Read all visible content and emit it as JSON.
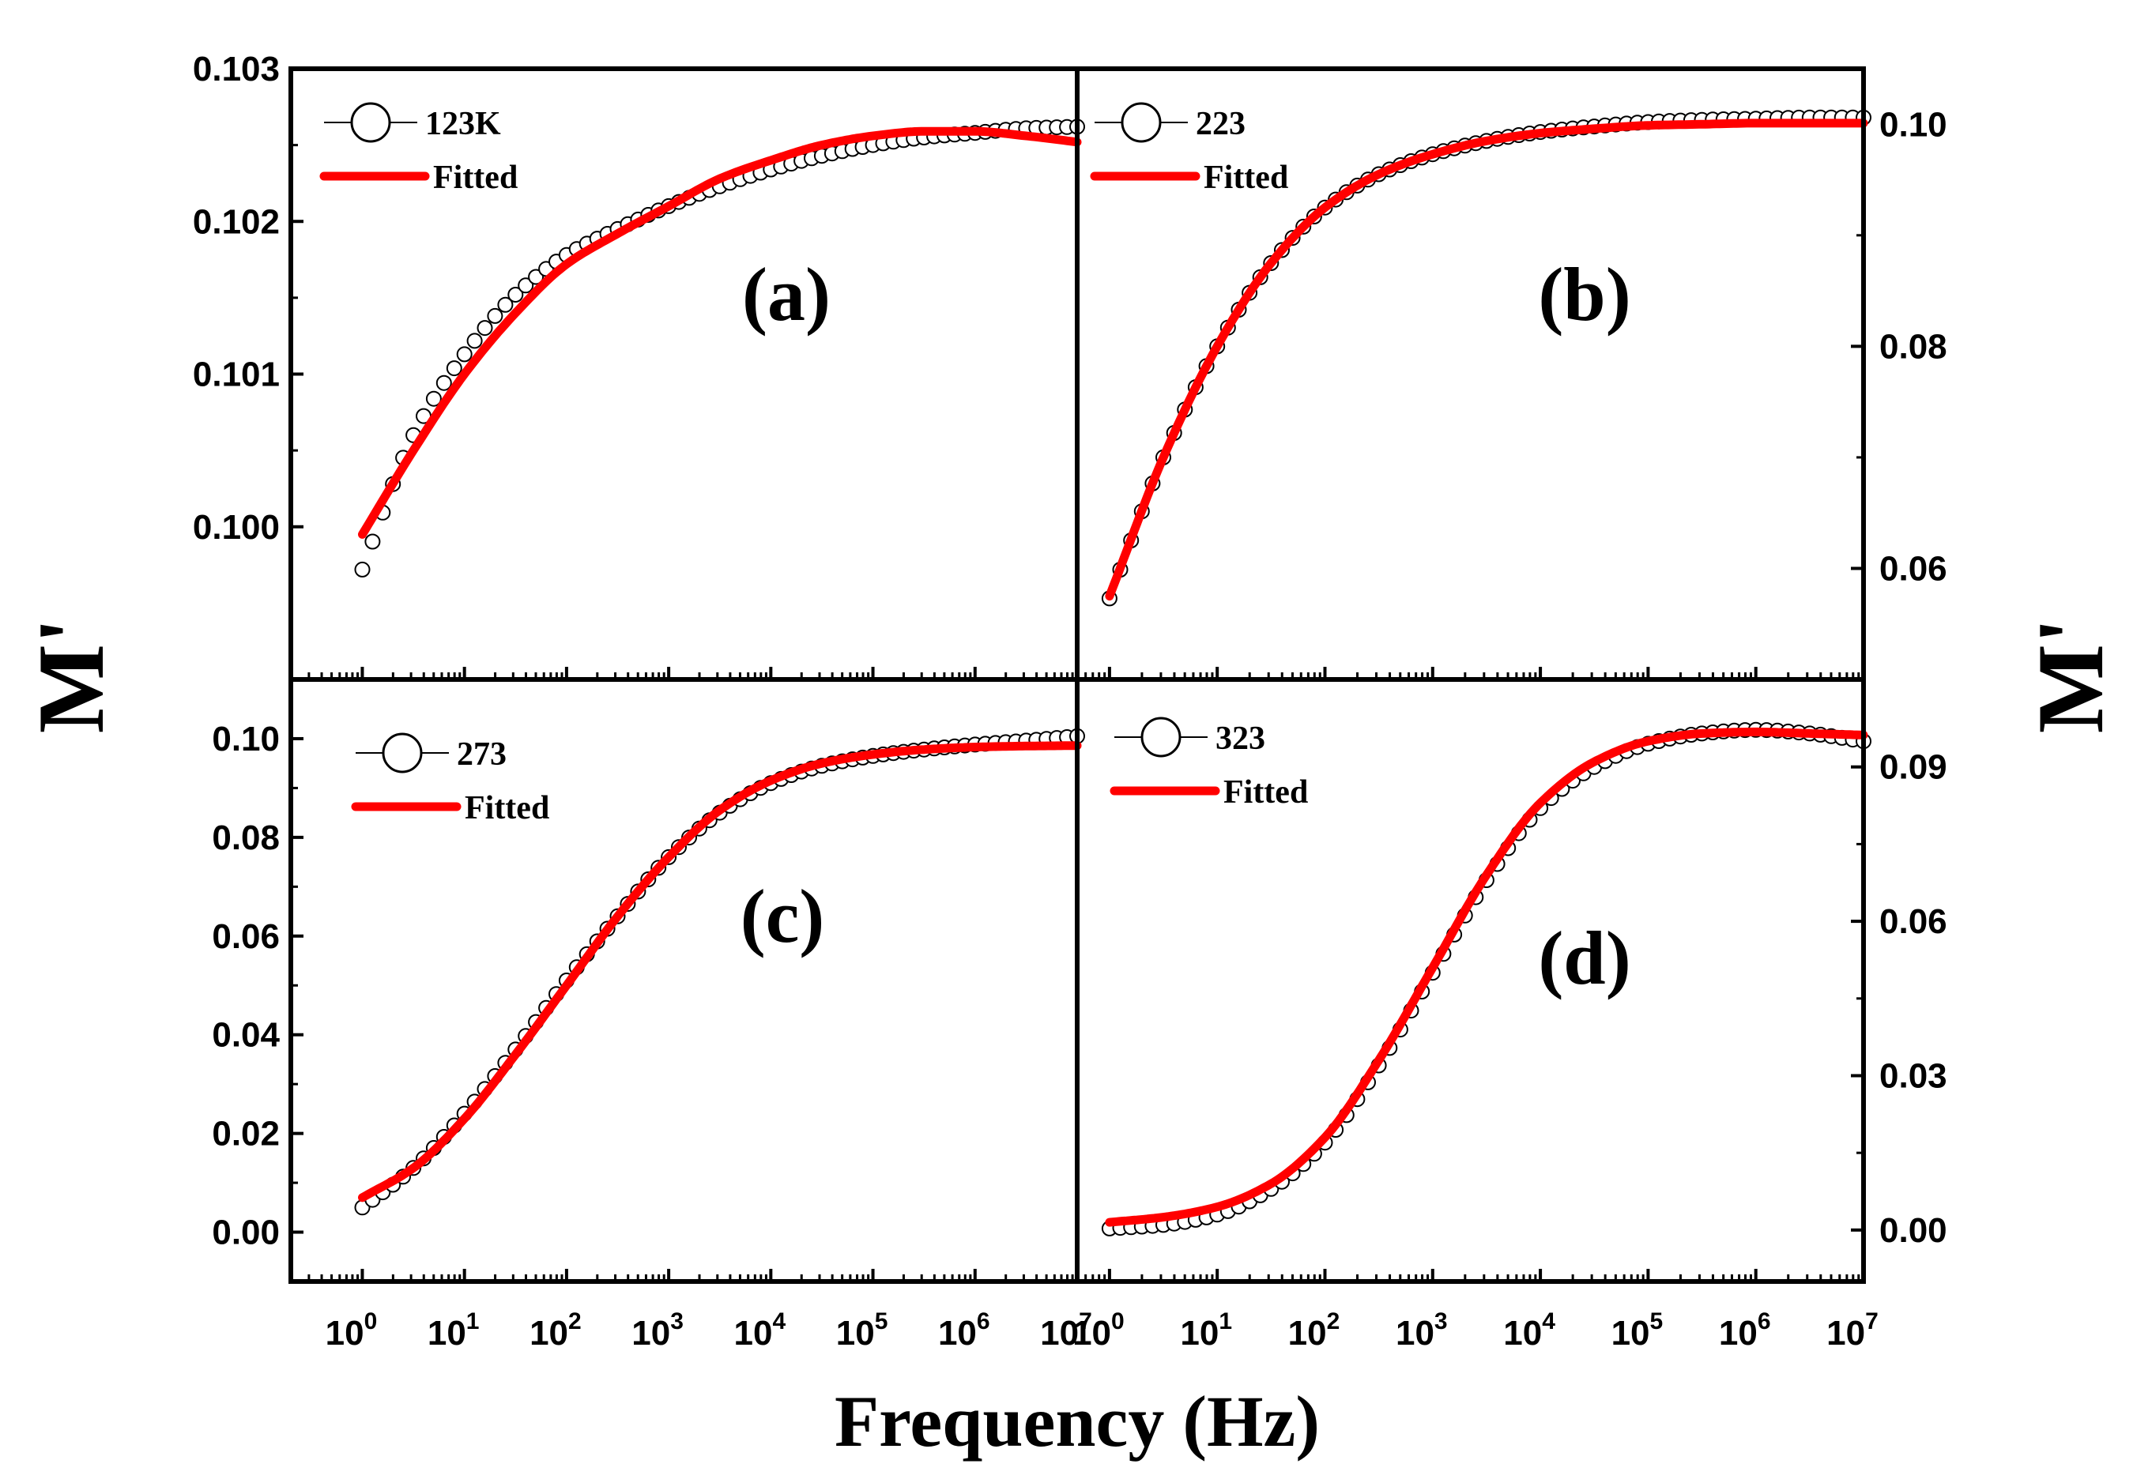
{
  "figure": {
    "xlabel": "Frequency (Hz)",
    "ylabel_left": "M'",
    "ylabel_right": "M'",
    "colors": {
      "data_marker": "#000000",
      "fit_line": "#ff0000",
      "frame": "#000000"
    }
  },
  "chart_data": [
    {
      "panel": "a",
      "type": "line",
      "panel_label": "(a)",
      "y_side": "left",
      "xscale": "log",
      "xlim_exp": [
        -0.7,
        7
      ],
      "ylim": [
        0.099,
        0.103
      ],
      "yticks": [
        0.1,
        0.101,
        0.102,
        0.103
      ],
      "ytick_labels": [
        "0.100",
        "0.101",
        "0.102",
        "0.103"
      ],
      "xtick_exps": [
        0,
        1,
        2,
        3,
        4,
        5,
        6,
        7
      ],
      "legend": {
        "data_label": "123K",
        "fit_label": "Fitted",
        "position": "top-left"
      },
      "series": [
        {
          "name": "123K",
          "style": "open-circle",
          "log_f": [
            0,
            0.5,
            1,
            1.5,
            2,
            2.5,
            3,
            3.5,
            4,
            4.5,
            5,
            5.5,
            6,
            6.5,
            7
          ],
          "values": [
            0.09972,
            0.1006,
            0.10113,
            0.10152,
            0.10178,
            0.10195,
            0.1021,
            0.10223,
            0.10234,
            0.10243,
            0.1025,
            0.10255,
            0.10258,
            0.10261,
            0.10262
          ]
        },
        {
          "name": "Fitted",
          "style": "line",
          "log_f": [
            0,
            0.5,
            1,
            1.5,
            2,
            2.5,
            3,
            3.5,
            4,
            4.5,
            5,
            5.5,
            6,
            6.5,
            7
          ],
          "values": [
            0.09995,
            0.1005,
            0.101,
            0.1014,
            0.10172,
            0.10192,
            0.1021,
            0.10228,
            0.1024,
            0.1025,
            0.10256,
            0.10259,
            0.10259,
            0.10256,
            0.10252
          ]
        }
      ]
    },
    {
      "panel": "b",
      "type": "line",
      "panel_label": "(b)",
      "y_side": "right",
      "xscale": "log",
      "xlim_exp": [
        -0.3,
        7
      ],
      "ylim": [
        0.05,
        0.105
      ],
      "yticks": [
        0.06,
        0.08,
        0.1
      ],
      "ytick_labels": [
        "0.06",
        "0.08",
        "0.10"
      ],
      "xtick_exps": [
        0,
        1,
        2,
        3,
        4,
        5,
        6,
        7
      ],
      "legend": {
        "data_label": "223",
        "fit_label": "Fitted",
        "position": "top-left"
      },
      "series": [
        {
          "name": "223",
          "style": "open-circle",
          "log_f": [
            0,
            0.5,
            1,
            1.5,
            2,
            2.5,
            3,
            3.5,
            4,
            4.5,
            5,
            5.5,
            6,
            6.5,
            7
          ],
          "values": [
            0.0573,
            0.07,
            0.08,
            0.0875,
            0.0925,
            0.0955,
            0.0973,
            0.0985,
            0.0993,
            0.0998,
            0.1002,
            0.1004,
            0.1005,
            0.1006,
            0.1006
          ]
        },
        {
          "name": "Fitted",
          "style": "line",
          "log_f": [
            0,
            0.5,
            1,
            1.5,
            2,
            2.5,
            3,
            3.5,
            4,
            4.5,
            5,
            5.5,
            6,
            6.5,
            7
          ],
          "values": [
            0.0575,
            0.07,
            0.08,
            0.0875,
            0.0925,
            0.0955,
            0.0973,
            0.0985,
            0.0992,
            0.0996,
            0.0999,
            0.1,
            0.1001,
            0.1001,
            0.1001
          ]
        }
      ]
    },
    {
      "panel": "c",
      "type": "line",
      "panel_label": "(c)",
      "y_side": "left",
      "xscale": "log",
      "xlim_exp": [
        -0.7,
        7
      ],
      "ylim": [
        -0.01,
        0.112
      ],
      "yticks": [
        0.0,
        0.02,
        0.04,
        0.06,
        0.08,
        0.1
      ],
      "ytick_labels": [
        "0.00",
        "0.02",
        "0.04",
        "0.06",
        "0.08",
        "0.10"
      ],
      "xtick_exps": [
        0,
        1,
        2,
        3,
        4,
        5,
        6,
        7
      ],
      "legend": {
        "data_label": "273",
        "fit_label": "Fitted",
        "position": "top-left"
      },
      "series": [
        {
          "name": "273",
          "style": "open-circle",
          "log_f": [
            0,
            0.5,
            1,
            1.5,
            2,
            2.5,
            3,
            3.5,
            4,
            4.5,
            5,
            5.5,
            6,
            6.5,
            7
          ],
          "values": [
            0.005,
            0.013,
            0.024,
            0.037,
            0.051,
            0.064,
            0.076,
            0.085,
            0.091,
            0.0945,
            0.0965,
            0.0978,
            0.0988,
            0.0996,
            0.1005
          ]
        },
        {
          "name": "Fitted",
          "style": "line",
          "log_f": [
            0,
            0.5,
            1,
            1.5,
            2,
            2.5,
            3,
            3.5,
            4,
            4.5,
            5,
            5.5,
            6,
            6.5,
            7
          ],
          "values": [
            0.007,
            0.013,
            0.023,
            0.036,
            0.05,
            0.064,
            0.076,
            0.0855,
            0.0915,
            0.095,
            0.0968,
            0.0978,
            0.0983,
            0.0985,
            0.0986
          ]
        }
      ]
    },
    {
      "panel": "d",
      "type": "line",
      "panel_label": "(d)",
      "y_side": "right",
      "xscale": "log",
      "xlim_exp": [
        -0.3,
        7
      ],
      "ylim": [
        -0.01,
        0.107
      ],
      "yticks": [
        0.0,
        0.03,
        0.06,
        0.09
      ],
      "ytick_labels": [
        "0.00",
        "0.03",
        "0.06",
        "0.09"
      ],
      "xtick_exps": [
        0,
        1,
        2,
        3,
        4,
        5,
        6,
        7
      ],
      "legend": {
        "data_label": "323",
        "fit_label": "Fitted",
        "position": "top-left"
      },
      "series": [
        {
          "name": "323",
          "style": "open-circle",
          "log_f": [
            0,
            0.5,
            1,
            1.5,
            2,
            2.5,
            3,
            3.5,
            4,
            4.5,
            5,
            5.5,
            6,
            6.5,
            7
          ],
          "values": [
            0.0003,
            0.001,
            0.003,
            0.008,
            0.017,
            0.032,
            0.05,
            0.068,
            0.082,
            0.09,
            0.0945,
            0.0965,
            0.0972,
            0.0965,
            0.095
          ]
        },
        {
          "name": "Fitted",
          "style": "line",
          "log_f": [
            0,
            0.5,
            1,
            1.5,
            2,
            2.5,
            3,
            3.5,
            4,
            4.5,
            5,
            5.5,
            6,
            6.5,
            7
          ],
          "values": [
            0.0015,
            0.0025,
            0.0045,
            0.009,
            0.018,
            0.033,
            0.051,
            0.069,
            0.083,
            0.091,
            0.095,
            0.0965,
            0.0968,
            0.0965,
            0.0962
          ]
        }
      ]
    }
  ]
}
